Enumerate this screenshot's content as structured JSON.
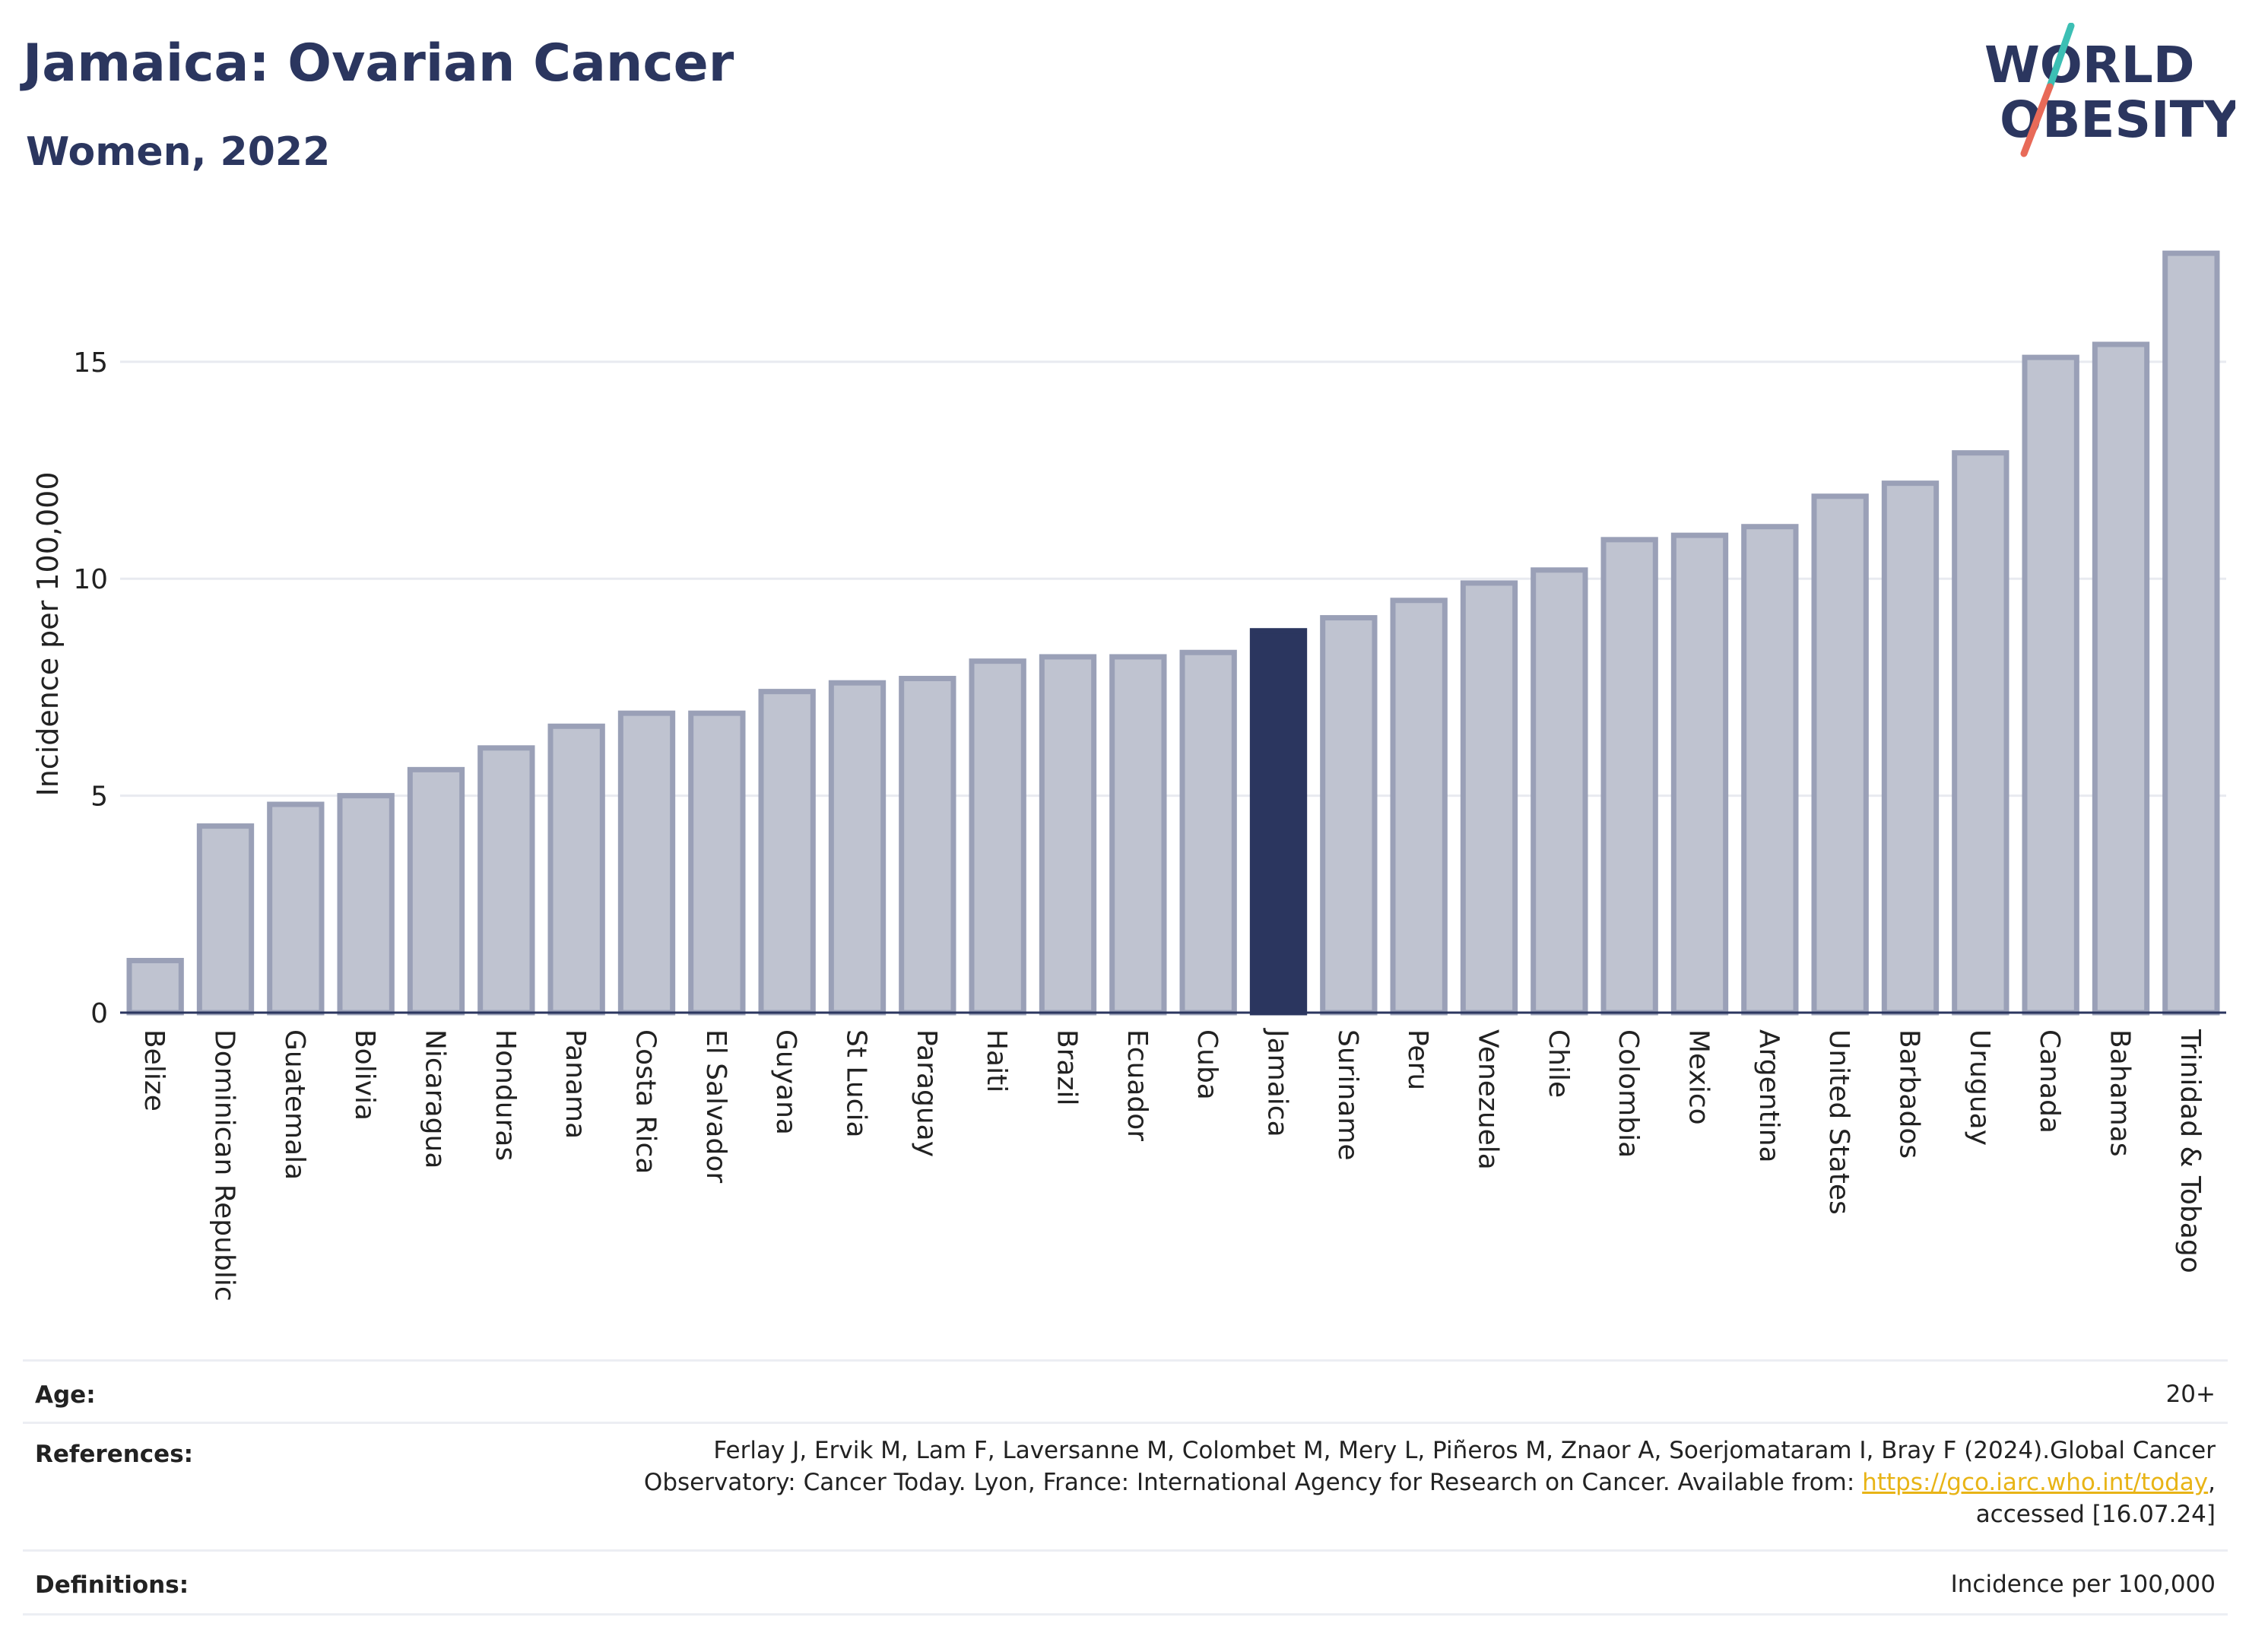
{
  "header": {
    "title": "Jamaica: Ovarian Cancer",
    "subtitle": "Women, 2022",
    "logo_line1": "WORLD",
    "logo_line2": "OBESITY"
  },
  "colors": {
    "bar_default": "#bfc3d0",
    "bar_default_stroke": "#9aa0b7",
    "bar_highlight": "#2b365f",
    "text_dark": "#2b365f",
    "grid": "#e8eaf0",
    "logo_teal": "#3cbfb4",
    "logo_coral": "#e86a58",
    "link": "#e8b416"
  },
  "chart_data": {
    "type": "bar",
    "ylabel": "Incidence per 100,000",
    "ylim": [
      0,
      17.8
    ],
    "yticks": [
      0,
      5,
      10,
      15
    ],
    "grid": true,
    "highlight": "Jamaica",
    "categories": [
      "Belize",
      "Dominican Republic",
      "Guatemala",
      "Bolivia",
      "Nicaragua",
      "Honduras",
      "Panama",
      "Costa Rica",
      "El Salvador",
      "Guyana",
      "St Lucia",
      "Paraguay",
      "Haiti",
      "Brazil",
      "Ecuador",
      "Cuba",
      "Jamaica",
      "Suriname",
      "Peru",
      "Venezuela",
      "Chile",
      "Colombia",
      "Mexico",
      "Argentina",
      "United States",
      "Barbados",
      "Uruguay",
      "Canada",
      "Bahamas",
      "Trinidad & Tobago"
    ],
    "values": [
      1.2,
      4.3,
      4.8,
      5.0,
      5.6,
      6.1,
      6.6,
      6.9,
      6.9,
      7.4,
      7.6,
      7.7,
      8.1,
      8.2,
      8.2,
      8.3,
      8.8,
      9.1,
      9.5,
      9.9,
      10.2,
      10.9,
      11.0,
      11.2,
      11.9,
      12.2,
      12.9,
      15.1,
      15.4,
      17.5
    ]
  },
  "footer": {
    "age_label": "Age:",
    "age_value": "20+",
    "references_label": "References:",
    "references_line1": "Ferlay J, Ervik M, Lam F, Laversanne M, Colombet M, Mery L, Piñeros M, Znaor A, Soerjomataram I, Bray F (2024).Global Cancer",
    "references_line2_prefix": "Observatory: Cancer Today. Lyon, France: International Agency for Research on Cancer. Available from: ",
    "references_link": "https://gco.iarc.who.int/today",
    "references_line2_suffix": ",",
    "references_line3": "accessed [16.07.24]",
    "definitions_label": "Definitions:",
    "definitions_value": "Incidence per 100,000"
  }
}
